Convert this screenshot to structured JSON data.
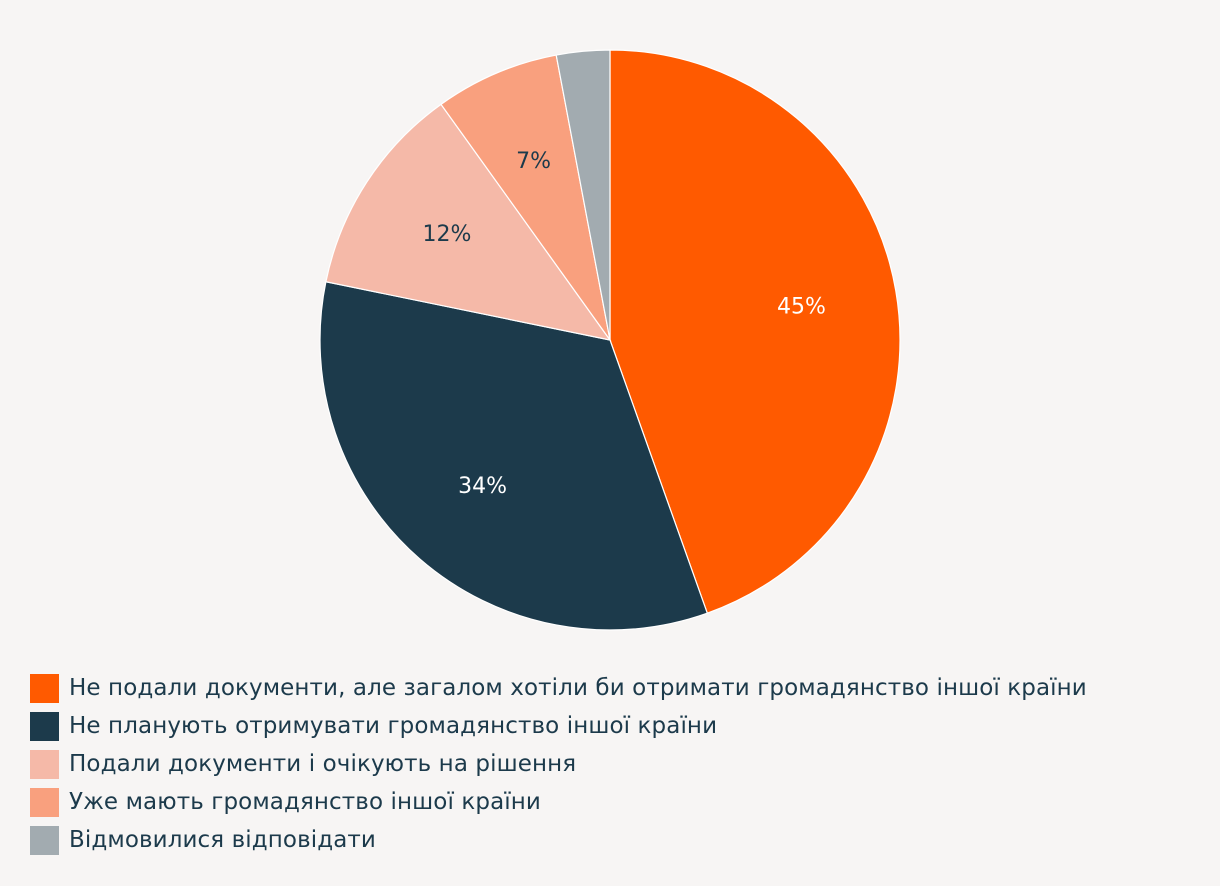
{
  "chart_data": {
    "type": "pie",
    "title": "",
    "start_angle_deg": 0,
    "direction": "clockwise",
    "slices": [
      {
        "name": "Не подали документи, але загалом хотіли би отримати громадянство іншої країни",
        "value": 45,
        "label": "45%",
        "color": "#ff5a00",
        "label_color": "#ffffff"
      },
      {
        "name": "Не планують отримувати громадянство іншої країни",
        "value": 34,
        "label": "34%",
        "color": "#1c3a4b",
        "label_color": "#ffffff"
      },
      {
        "name": "Подали документи і очікують на рішення",
        "value": 12,
        "label": "12%",
        "color": "#f5b9a8",
        "label_color": "#1c3a4b"
      },
      {
        "name": "Уже мають громадянство іншої країни",
        "value": 7,
        "label": "7%",
        "color": "#f9a07e",
        "label_color": "#1c3a4b"
      },
      {
        "name": "Відмовилися відповідати",
        "value": 3,
        "label": "",
        "color": "#a2abb0",
        "label_color": "#1c3a4b"
      }
    ],
    "legend_position": "bottom-left"
  }
}
